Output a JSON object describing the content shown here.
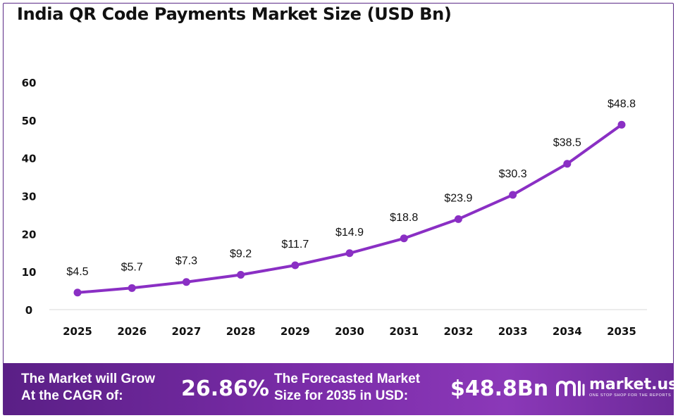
{
  "title": "India QR Code Payments Market Size (USD Bn)",
  "colors": {
    "line": "#8a2fc4",
    "footer_start": "#5a1f86",
    "footer_end": "#8b38b8",
    "frame": "#5b2a86"
  },
  "chart_data": {
    "type": "line",
    "categories": [
      "2025",
      "2026",
      "2027",
      "2028",
      "2029",
      "2030",
      "2031",
      "2032",
      "2033",
      "2034",
      "2035"
    ],
    "values": [
      4.5,
      5.7,
      7.3,
      9.2,
      11.7,
      14.9,
      18.8,
      23.9,
      30.3,
      38.5,
      48.8
    ],
    "data_labels": [
      "$4.5",
      "$5.7",
      "$7.3",
      "$9.2",
      "$11.7",
      "$14.9",
      "$18.8",
      "$23.9",
      "$30.3",
      "$38.5",
      "$48.8"
    ],
    "yticks": [
      "0",
      "10",
      "20",
      "30",
      "40",
      "50",
      "60"
    ],
    "ylim": [
      0,
      60
    ],
    "xlabel": "",
    "ylabel": "",
    "grid": false,
    "legend": "none",
    "markers": true
  },
  "footer": {
    "cagr_label_line1": "The Market will Grow",
    "cagr_label_line2": "At the CAGR of:",
    "cagr_value": "26.86%",
    "forecast_label_line1": "The Forecasted Market",
    "forecast_label_line2": "Size for 2035 in USD:",
    "forecast_value": "$48.8Bn",
    "brand_name": "market.us",
    "brand_tagline": "ONE STOP SHOP FOR THE REPORTS"
  }
}
